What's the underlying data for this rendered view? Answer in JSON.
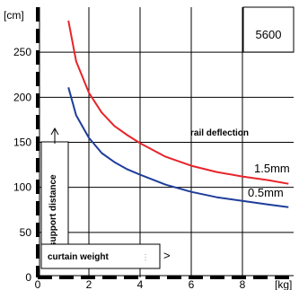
{
  "chart_data": {
    "type": "line",
    "model_label": "5600",
    "y_unit": "[cm]",
    "x_unit": "[kg]",
    "xlim": [
      0,
      10
    ],
    "ylim": [
      0,
      300
    ],
    "x_ticks": [
      "0",
      "2",
      "4",
      "6",
      "8"
    ],
    "y_ticks": [
      "0",
      "50",
      "100",
      "150",
      "200",
      "250"
    ],
    "x_tick_values": [
      0,
      2,
      4,
      6,
      8
    ],
    "y_tick_values": [
      0,
      50,
      100,
      150,
      200,
      250
    ],
    "grid": true,
    "annotations": {
      "rail_deflection": "rail deflection",
      "support_distance": "support distance",
      "curtain_weight": "curtain weight",
      "arrow_right": ">"
    },
    "series": [
      {
        "name": "1.5mm",
        "color": "#e8242a",
        "x": [
          1.2,
          1.5,
          2,
          2.5,
          3,
          3.5,
          4,
          5,
          6,
          7,
          8,
          9,
          9.8
        ],
        "y": [
          285,
          240,
          205,
          183,
          168,
          158,
          149,
          134,
          124,
          117,
          112,
          108,
          104
        ]
      },
      {
        "name": "0.5mm",
        "color": "#1f3e99",
        "x": [
          1.2,
          1.5,
          2,
          2.5,
          3,
          3.5,
          4,
          5,
          6,
          7,
          8,
          9,
          9.8
        ],
        "y": [
          211,
          180,
          155,
          138,
          128,
          120,
          114,
          103,
          95,
          89,
          85,
          81,
          78
        ]
      }
    ]
  }
}
